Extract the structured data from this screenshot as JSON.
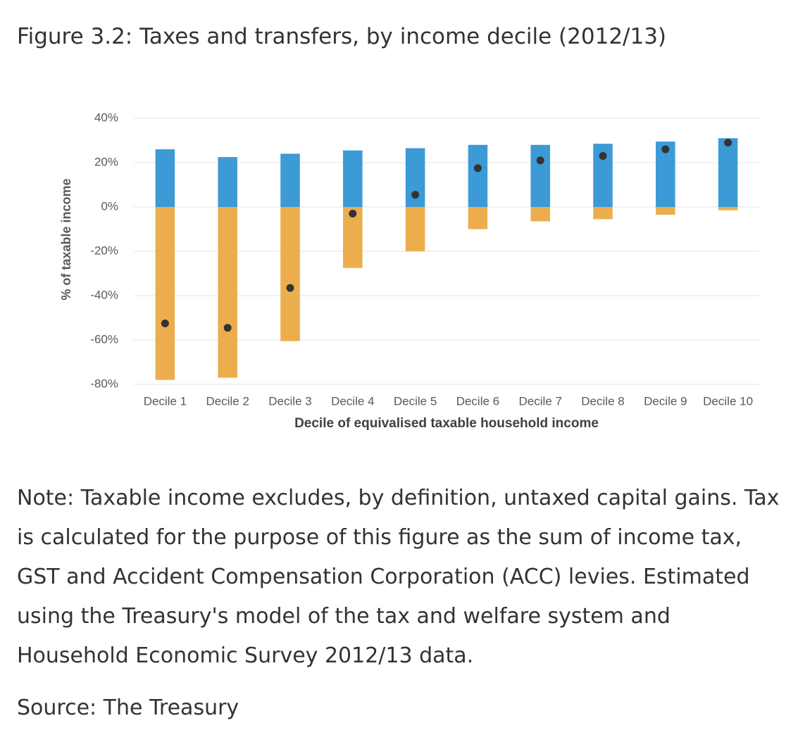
{
  "title": "Figure 3.2: Taxes and transfers, by income decile (2012/13)",
  "chart_data": {
    "type": "bar",
    "categories": [
      "Decile 1",
      "Decile 2",
      "Decile 3",
      "Decile 4",
      "Decile 5",
      "Decile 6",
      "Decile 7",
      "Decile 8",
      "Decile 9",
      "Decile 10"
    ],
    "series": [
      {
        "color": "#3c9ad6",
        "values": [
          26,
          22.5,
          24,
          25.5,
          26.5,
          28,
          28,
          28.5,
          29.5,
          31
        ]
      },
      {
        "color": "#ecae4d",
        "values": [
          -78,
          -77,
          -60.5,
          -27.5,
          -20,
          -10,
          -6.5,
          -5.5,
          -3.5,
          -1.5
        ]
      },
      {
        "type": "dot",
        "color": "#333333",
        "values": [
          -52.5,
          -54.5,
          -36.5,
          -3,
          5.5,
          17.5,
          21,
          23,
          26,
          29
        ]
      }
    ],
    "ylim": [
      -80,
      40
    ],
    "yticks": [
      {
        "value": -80,
        "label": "-80%"
      },
      {
        "value": -60,
        "label": "-60%"
      },
      {
        "value": -40,
        "label": "-40%"
      },
      {
        "value": -20,
        "label": "-20%"
      },
      {
        "value": 0,
        "label": "0%"
      },
      {
        "value": 20,
        "label": "20%"
      },
      {
        "value": 40,
        "label": "40%"
      }
    ],
    "y_label": "% of taxable income",
    "x_label": "Decile of equivalised taxable household income",
    "grid": true
  },
  "note": "Note: Taxable income excludes, by definition, untaxed capital gains. Tax is calculated for the purpose of this figure as the sum of income tax, GST and Accident Compensation Corporation (ACC) levies. Estimated using the Treasury's model of the tax and welfare system and Household Economic Survey 2012/13 data.",
  "source": "Source: The Treasury"
}
